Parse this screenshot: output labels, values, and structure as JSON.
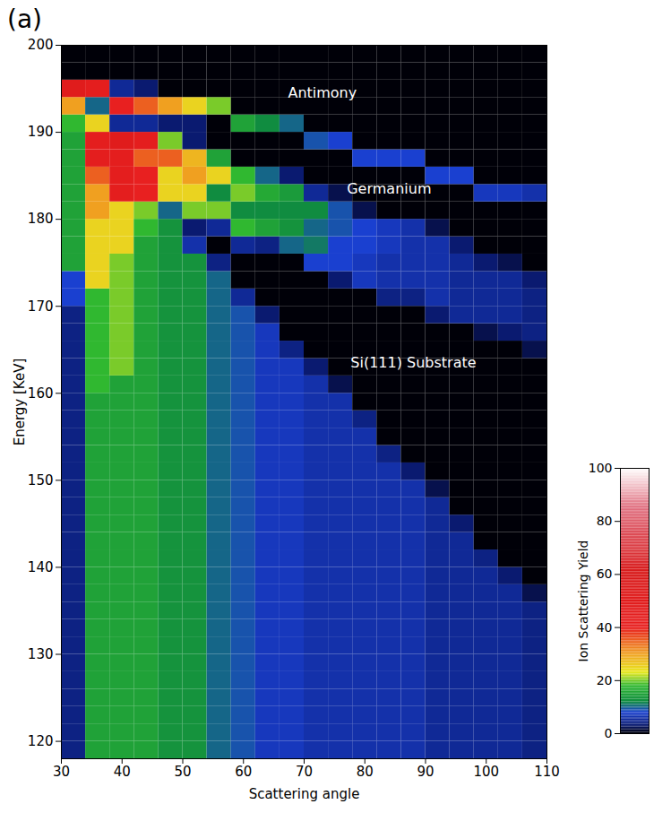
{
  "chart_data": {
    "type": "heatmap",
    "panel_label": "(a)",
    "x_label": "Scattering angle",
    "y_label": "Energy [KeV]",
    "xlim": [
      30,
      110
    ],
    "ylim": [
      118,
      200
    ],
    "xticks": [
      30,
      40,
      50,
      60,
      70,
      80,
      90,
      100,
      110
    ],
    "yticks": [
      120,
      130,
      140,
      150,
      160,
      170,
      180,
      190,
      200
    ],
    "x_bins": [
      30,
      34,
      38,
      42,
      46,
      50,
      54,
      58,
      62,
      66,
      70,
      74,
      78,
      82,
      86,
      90,
      94,
      98,
      102,
      106,
      110
    ],
    "y_bins": [
      118,
      120,
      122,
      124,
      126,
      128,
      130,
      132,
      134,
      136,
      138,
      140,
      142,
      144,
      146,
      148,
      150,
      152,
      154,
      156,
      158,
      160,
      162,
      164,
      166,
      168,
      170,
      172,
      174,
      176,
      178,
      180,
      182,
      184,
      186,
      188,
      190,
      192,
      194,
      196,
      198,
      200
    ],
    "cells": [
      [
        4,
        4,
        4,
        4,
        4,
        4,
        4,
        4,
        4,
        4,
        4,
        4,
        4,
        4,
        4,
        4,
        4,
        4,
        4,
        4,
        4,
        4,
        4,
        4,
        4,
        4,
        8,
        8,
        15,
        15,
        15,
        15,
        15,
        15,
        15,
        15,
        18,
        30,
        50,
        0,
        0
      ],
      [
        15,
        15,
        15,
        15,
        15,
        15,
        15,
        15,
        15,
        15,
        15,
        15,
        15,
        15,
        15,
        15,
        15,
        15,
        15,
        15,
        15,
        18,
        18,
        18,
        18,
        18,
        18,
        25,
        25,
        25,
        25,
        30,
        30,
        35,
        45,
        45,
        25,
        10,
        45,
        0,
        0
      ],
      [
        15,
        15,
        15,
        15,
        15,
        15,
        15,
        15,
        15,
        15,
        15,
        15,
        15,
        15,
        15,
        15,
        15,
        15,
        15,
        15,
        15,
        15,
        20,
        20,
        20,
        20,
        20,
        20,
        20,
        25,
        25,
        25,
        45,
        45,
        45,
        50,
        5,
        40,
        5,
        0,
        0
      ],
      [
        15,
        15,
        15,
        15,
        15,
        15,
        15,
        15,
        15,
        15,
        15,
        15,
        15,
        15,
        15,
        15,
        15,
        15,
        15,
        15,
        15,
        15,
        15,
        15,
        15,
        15,
        15,
        15,
        15,
        15,
        18,
        20,
        40,
        40,
        35,
        45,
        5,
        35,
        3,
        0,
        0
      ],
      [
        13,
        13,
        13,
        13,
        13,
        13,
        13,
        13,
        13,
        13,
        13,
        13,
        13,
        13,
        13,
        13,
        13,
        13,
        13,
        13,
        13,
        13,
        13,
        13,
        13,
        13,
        13,
        13,
        13,
        13,
        13,
        10,
        25,
        25,
        35,
        20,
        3,
        30,
        0,
        0,
        0
      ],
      [
        13,
        13,
        13,
        13,
        13,
        13,
        13,
        13,
        13,
        13,
        13,
        13,
        13,
        13,
        13,
        13,
        13,
        13,
        13,
        13,
        13,
        13,
        13,
        13,
        13,
        13,
        13,
        13,
        13,
        6,
        3,
        20,
        25,
        30,
        28,
        3,
        3,
        25,
        0,
        0,
        0
      ],
      [
        10,
        10,
        10,
        10,
        10,
        10,
        10,
        10,
        10,
        10,
        10,
        10,
        10,
        10,
        10,
        10,
        10,
        10,
        10,
        10,
        10,
        10,
        10,
        10,
        10,
        10,
        10,
        10,
        4,
        0,
        5,
        20,
        12,
        25,
        15,
        0,
        0,
        20,
        0,
        0,
        0
      ],
      [
        9,
        9,
        9,
        9,
        9,
        9,
        9,
        9,
        9,
        9,
        9,
        9,
        9,
        9,
        9,
        9,
        9,
        9,
        9,
        9,
        9,
        9,
        9,
        9,
        9,
        9,
        5,
        0,
        0,
        5,
        18,
        12,
        20,
        18,
        0,
        0,
        15,
        0,
        0,
        0,
        0
      ],
      [
        7,
        7,
        7,
        7,
        7,
        7,
        7,
        7,
        7,
        7,
        7,
        7,
        7,
        7,
        7,
        7,
        7,
        7,
        7,
        7,
        7,
        7,
        7,
        7,
        7,
        3,
        0,
        0,
        0,
        4,
        15,
        12,
        16,
        10,
        0,
        0,
        12,
        0,
        0,
        0,
        0
      ],
      [
        7,
        7,
        7,
        7,
        7,
        7,
        7,
        7,
        7,
        7,
        7,
        7,
        7,
        7,
        7,
        7,
        7,
        7,
        7,
        7,
        7,
        7,
        7,
        4,
        0,
        0,
        0,
        0,
        0,
        10,
        13,
        12,
        14,
        3,
        0,
        0,
        10,
        0,
        0,
        0,
        0
      ],
      [
        6,
        6,
        6,
        6,
        6,
        6,
        6,
        6,
        6,
        6,
        6,
        6,
        6,
        6,
        6,
        6,
        6,
        6,
        6,
        6,
        6,
        6,
        3,
        0,
        0,
        0,
        0,
        0,
        8,
        11,
        10,
        12,
        5,
        0,
        0,
        9,
        0,
        0,
        0,
        0,
        0
      ],
      [
        6,
        6,
        6,
        6,
        6,
        6,
        6,
        6,
        6,
        6,
        6,
        6,
        6,
        6,
        6,
        6,
        6,
        6,
        6,
        6,
        6,
        2,
        0,
        0,
        0,
        0,
        0,
        3,
        8,
        8,
        9,
        9,
        2,
        0,
        0,
        8,
        0,
        0,
        0,
        0,
        0
      ],
      [
        6,
        6,
        6,
        6,
        6,
        6,
        6,
        6,
        6,
        6,
        6,
        6,
        6,
        6,
        6,
        6,
        6,
        6,
        6,
        4,
        0,
        0,
        0,
        0,
        0,
        0,
        0,
        7,
        7,
        8,
        8,
        2,
        0,
        0,
        8,
        0,
        0,
        0,
        0,
        0,
        0
      ],
      [
        6,
        6,
        6,
        6,
        6,
        6,
        6,
        6,
        6,
        6,
        6,
        6,
        6,
        6,
        6,
        6,
        6,
        4,
        0,
        0,
        0,
        0,
        0,
        0,
        0,
        0,
        4,
        6,
        6,
        7,
        7,
        0,
        0,
        0,
        8,
        0,
        0,
        0,
        0,
        0,
        0
      ],
      [
        6,
        6,
        6,
        6,
        6,
        6,
        6,
        6,
        6,
        6,
        6,
        6,
        6,
        6,
        6,
        6,
        3,
        0,
        0,
        0,
        0,
        0,
        0,
        0,
        0,
        0,
        4,
        6,
        6,
        6,
        6,
        0,
        0,
        0,
        8,
        0,
        0,
        0,
        0,
        0,
        0
      ],
      [
        5,
        5,
        5,
        5,
        5,
        5,
        5,
        5,
        5,
        5,
        5,
        5,
        5,
        5,
        5,
        2,
        0,
        0,
        0,
        0,
        0,
        0,
        0,
        0,
        0,
        3,
        6,
        6,
        6,
        6,
        2,
        0,
        0,
        8,
        0,
        0,
        0,
        0,
        0,
        0,
        0
      ],
      [
        5,
        5,
        5,
        5,
        5,
        5,
        5,
        5,
        5,
        5,
        5,
        5,
        5,
        3,
        0,
        0,
        0,
        0,
        0,
        0,
        0,
        0,
        0,
        0,
        0,
        5,
        5,
        5,
        5,
        3,
        0,
        0,
        0,
        8,
        0,
        0,
        0,
        0,
        0,
        0,
        0
      ],
      [
        5,
        5,
        5,
        5,
        5,
        5,
        5,
        5,
        5,
        5,
        5,
        4,
        0,
        0,
        0,
        0,
        0,
        0,
        0,
        0,
        0,
        0,
        0,
        0,
        2,
        5,
        5,
        5,
        3,
        0,
        0,
        0,
        7,
        0,
        0,
        0,
        0,
        0,
        0,
        0,
        0
      ],
      [
        5,
        5,
        5,
        5,
        5,
        5,
        5,
        5,
        5,
        5,
        3,
        0,
        0,
        0,
        0,
        0,
        0,
        0,
        0,
        0,
        0,
        0,
        0,
        0,
        3,
        5,
        5,
        5,
        2,
        0,
        0,
        0,
        7,
        0,
        0,
        0,
        0,
        0,
        0,
        0,
        0
      ],
      [
        4,
        4,
        4,
        4,
        4,
        4,
        4,
        4,
        4,
        2,
        0,
        0,
        0,
        0,
        0,
        0,
        0,
        0,
        0,
        0,
        0,
        0,
        0,
        2,
        4,
        4,
        4,
        3,
        0,
        0,
        0,
        0,
        6,
        0,
        0,
        0,
        0,
        0,
        0,
        0,
        0
      ]
    ],
    "colorbar": {
      "label": "Ion Scattering Yield",
      "lim": [
        0,
        100
      ],
      "ticks": [
        0,
        20,
        40,
        60,
        80,
        100
      ]
    },
    "annotations": [
      {
        "text": "Antimony",
        "x": 73,
        "y": 194.5
      },
      {
        "text": "Germanium",
        "x": 84,
        "y": 183.5
      },
      {
        "text": "Si(111) Substrate",
        "x": 88,
        "y": 163.5
      }
    ],
    "legend": "right"
  }
}
